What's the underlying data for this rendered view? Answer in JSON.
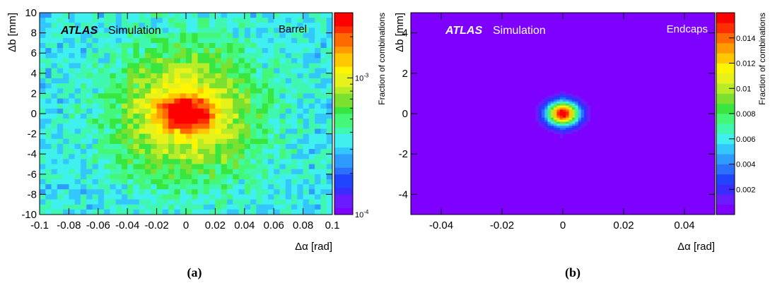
{
  "chart_data": [
    {
      "type": "heatmap",
      "panel_caption": "(a)",
      "atlas_label": "ATLAS",
      "simulation_label": "Simulation",
      "region_label": "Barrel",
      "xlabel": "Δα [rad]",
      "ylabel": "Δb [mm]",
      "zlabel": "Fraction of combinations",
      "xlim": [
        -0.1,
        0.1
      ],
      "ylim": [
        -10,
        10
      ],
      "zlim": [
        0.0001,
        0.003
      ],
      "z_scale": "log",
      "x_ticks": [
        "-0.1",
        "-0.08",
        "-0.06",
        "-0.04",
        "-0.02",
        "0",
        "0.02",
        "0.04",
        "0.06",
        "0.08",
        "0.1"
      ],
      "y_ticks": [
        "-10",
        "-8",
        "-6",
        "-4",
        "-2",
        "0",
        "2",
        "4",
        "6",
        "8",
        "10"
      ],
      "z_ticks": [
        {
          "value": 0.001,
          "base": "10",
          "exp": "-3"
        },
        {
          "value": 0.0001,
          "base": "10",
          "exp": "-4"
        }
      ],
      "bins": {
        "nx": 50,
        "ny": 40
      },
      "distribution": {
        "peak": 0.003,
        "background": 0.00035,
        "core_x": 0.011,
        "core_y": 1.0,
        "halo_x": 0.03,
        "halo_y": 4.0
      },
      "grid": false
    },
    {
      "type": "heatmap",
      "panel_caption": "(b)",
      "atlas_label": "ATLAS",
      "simulation_label": "Simulation",
      "region_label": "Endcaps",
      "xlabel": "Δα [rad]",
      "ylabel": "Δb [mm]",
      "zlabel": "Fraction of combinations",
      "xlim": [
        -0.05,
        0.05
      ],
      "ylim": [
        -5,
        5
      ],
      "zlim": [
        0.0,
        0.016
      ],
      "z_scale": "linear",
      "x_ticks": [
        "-0.04",
        "-0.02",
        "0",
        "0.02",
        "0.04"
      ],
      "y_ticks": [
        "-4",
        "-2",
        "0",
        "2",
        "4"
      ],
      "z_ticks": [
        {
          "value": 0.002,
          "label": "0.002"
        },
        {
          "value": 0.004,
          "label": "0.004"
        },
        {
          "value": 0.006,
          "label": "0.006"
        },
        {
          "value": 0.008,
          "label": "0.008"
        },
        {
          "value": 0.01,
          "label": "0.01"
        },
        {
          "value": 0.012,
          "label": "0.012"
        },
        {
          "value": 0.014,
          "label": "0.014"
        }
      ],
      "bins": {
        "nx": 100,
        "ny": 100
      },
      "distribution": {
        "peak": 0.016,
        "background": 0.0,
        "sigma_x": 0.0038,
        "sigma_y": 0.42
      },
      "grid": false
    }
  ]
}
